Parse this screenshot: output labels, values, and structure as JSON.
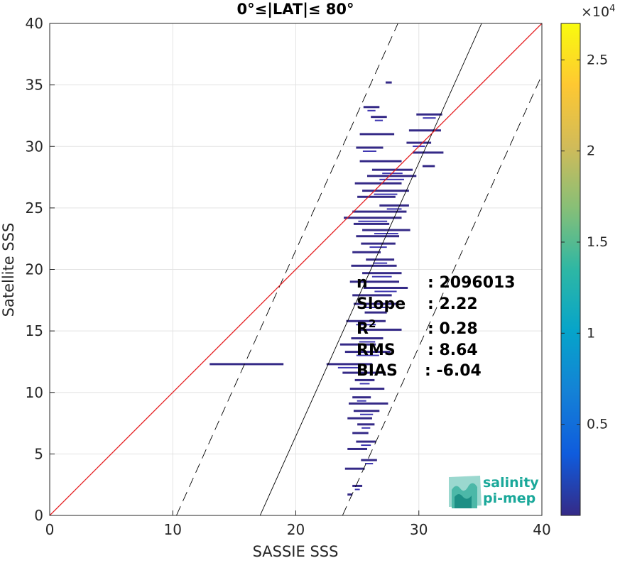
{
  "chart_data": {
    "type": "scatter",
    "title": "0°≤|LAT|≤ 80°",
    "xlabel": "SASSIE SSS",
    "ylabel": "Satellite SSS",
    "xlim": [
      0,
      40
    ],
    "ylim": [
      0,
      40
    ],
    "xticks": [
      "0",
      "10",
      "20",
      "30",
      "40"
    ],
    "yticks": [
      "0",
      "5",
      "10",
      "15",
      "20",
      "25",
      "30",
      "35",
      "40"
    ],
    "grid": true,
    "lines": {
      "identity": {
        "x": [
          0,
          40
        ],
        "y": [
          0,
          40
        ],
        "color": "#e41a1c"
      },
      "regression": {
        "x": [
          17.1,
          35.1
        ],
        "y": [
          0,
          40
        ],
        "color": "#000000"
      },
      "upper_dashed": {
        "x": [
          10.3,
          28.3
        ],
        "y": [
          0,
          40
        ],
        "color": "#000000"
      },
      "lower_dashed": {
        "x": [
          23.8,
          40
        ],
        "y": [
          0,
          35.8
        ],
        "color": "#000000"
      }
    },
    "stats": [
      {
        "label": "n",
        "sup": "",
        "value": ": 2096013"
      },
      {
        "label": "Slope",
        "sup": "",
        "value": ": 2.22"
      },
      {
        "label": "R",
        "sup": "2",
        "value": ": 0.28"
      },
      {
        "label": "RMS",
        "sup": "",
        "value": ": 8.64"
      },
      {
        "label": "BIAS",
        "sup": "",
        "value": ": -6.04"
      }
    ],
    "colorbar": {
      "range": [
        0,
        27000
      ],
      "multiplier": "×10",
      "exponent": "4",
      "ticks": [
        "0.5",
        "1",
        "1.5",
        "2",
        "2.5"
      ],
      "tick_values": [
        0.5,
        1,
        1.5,
        2,
        2.5
      ],
      "colormap": "parula",
      "colors": [
        "#352a87",
        "#0f5cdd",
        "#1481d6",
        "#06a4ca",
        "#2eb7a4",
        "#87bf77",
        "#d1bb59",
        "#fec832",
        "#f9fb0e"
      ]
    },
    "density_segments": [
      {
        "x": [
          25.5,
          26.8
        ],
        "y": 33.2
      },
      {
        "x": [
          27.3,
          27.8
        ],
        "y": 35.2
      },
      {
        "x": [
          26.1,
          27.4
        ],
        "y": 32.4
      },
      {
        "x": [
          25.2,
          28.0
        ],
        "y": 31.0
      },
      {
        "x": [
          29.8,
          31.9
        ],
        "y": 32.6
      },
      {
        "x": [
          29.2,
          31.8
        ],
        "y": 31.3
      },
      {
        "x": [
          29.0,
          31.0
        ],
        "y": 30.3
      },
      {
        "x": [
          29.5,
          32.0
        ],
        "y": 29.5
      },
      {
        "x": [
          24.9,
          27.1
        ],
        "y": 29.9
      },
      {
        "x": [
          25.2,
          28.6
        ],
        "y": 28.8
      },
      {
        "x": [
          26.2,
          29.5
        ],
        "y": 28.1
      },
      {
        "x": [
          30.3,
          31.3
        ],
        "y": 28.4
      },
      {
        "x": [
          25.8,
          29.8
        ],
        "y": 27.6
      },
      {
        "x": [
          24.8,
          28.6
        ],
        "y": 27.0
      },
      {
        "x": [
          25.4,
          29.2
        ],
        "y": 26.4
      },
      {
        "x": [
          25.0,
          28.1
        ],
        "y": 25.9
      },
      {
        "x": [
          26.8,
          29.2
        ],
        "y": 25.2
      },
      {
        "x": [
          24.6,
          29.0
        ],
        "y": 24.7
      },
      {
        "x": [
          23.9,
          28.6
        ],
        "y": 24.2
      },
      {
        "x": [
          24.7,
          27.6
        ],
        "y": 23.7
      },
      {
        "x": [
          25.4,
          29.3
        ],
        "y": 23.2
      },
      {
        "x": [
          24.9,
          28.4
        ],
        "y": 22.7
      },
      {
        "x": [
          25.3,
          28.1
        ],
        "y": 22.1
      },
      {
        "x": [
          24.6,
          26.9
        ],
        "y": 21.4
      },
      {
        "x": [
          25.7,
          28.0
        ],
        "y": 20.8
      },
      {
        "x": [
          24.5,
          28.2
        ],
        "y": 20.3
      },
      {
        "x": [
          25.4,
          28.6
        ],
        "y": 19.7
      },
      {
        "x": [
          24.4,
          28.4
        ],
        "y": 19.0
      },
      {
        "x": [
          25.5,
          29.1
        ],
        "y": 18.5
      },
      {
        "x": [
          24.6,
          27.8
        ],
        "y": 17.9
      },
      {
        "x": [
          24.7,
          28.2
        ],
        "y": 17.2
      },
      {
        "x": [
          25.6,
          27.4
        ],
        "y": 16.5
      },
      {
        "x": [
          24.1,
          27.3
        ],
        "y": 15.8
      },
      {
        "x": [
          25.1,
          28.6
        ],
        "y": 15.1
      },
      {
        "x": [
          24.5,
          27.1
        ],
        "y": 14.4
      },
      {
        "x": [
          23.6,
          26.5
        ],
        "y": 13.9
      },
      {
        "x": [
          24.0,
          27.7
        ],
        "y": 13.3
      },
      {
        "x": [
          13.0,
          19.0
        ],
        "y": 12.3
      },
      {
        "x": [
          22.5,
          26.2
        ],
        "y": 12.3
      },
      {
        "x": [
          23.8,
          27.3
        ],
        "y": 11.6
      },
      {
        "x": [
          24.8,
          26.4
        ],
        "y": 11.0
      },
      {
        "x": [
          24.4,
          27.2
        ],
        "y": 10.3
      },
      {
        "x": [
          24.6,
          26.1
        ],
        "y": 9.6
      },
      {
        "x": [
          24.3,
          27.5
        ],
        "y": 9.1
      },
      {
        "x": [
          24.7,
          26.8
        ],
        "y": 8.5
      },
      {
        "x": [
          24.2,
          26.2
        ],
        "y": 7.9
      },
      {
        "x": [
          25.0,
          26.4
        ],
        "y": 7.4
      },
      {
        "x": [
          24.6,
          25.9
        ],
        "y": 6.7
      },
      {
        "x": [
          24.9,
          26.5
        ],
        "y": 6.0
      },
      {
        "x": [
          24.2,
          25.8
        ],
        "y": 5.4
      },
      {
        "x": [
          25.3,
          26.6
        ],
        "y": 4.5
      },
      {
        "x": [
          24.0,
          25.6
        ],
        "y": 3.8
      },
      {
        "x": [
          24.6,
          25.4
        ],
        "y": 2.4
      },
      {
        "x": [
          24.2,
          24.6
        ],
        "y": 1.7
      }
    ]
  },
  "logo": {
    "line1": "salinity",
    "line2": "pi-mep"
  }
}
